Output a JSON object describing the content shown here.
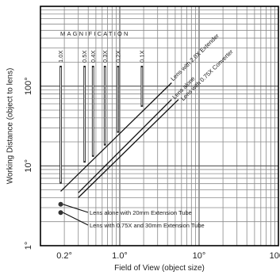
{
  "chart_data": {
    "type": "line",
    "title": "",
    "xlabel": "Field of View (object size)",
    "ylabel": "Working Distance (object to lens)",
    "x_scale": "log",
    "y_scale": "log",
    "xlim": [
      0.1,
      100
    ],
    "ylim": [
      1,
      1000
    ],
    "grid": true,
    "x_ticks": [
      {
        "value": 0.2,
        "label": "0.2°"
      },
      {
        "value": 1,
        "label": "1.0°"
      },
      {
        "value": 10,
        "label": "10°"
      },
      {
        "value": 100,
        "label": "100°"
      }
    ],
    "y_ticks": [
      {
        "value": 1,
        "label": "1°"
      },
      {
        "value": 10,
        "label": "10°"
      },
      {
        "value": 100,
        "label": "100°"
      }
    ],
    "magnification": {
      "label": "MAGNIFICATION",
      "marks": [
        {
          "label": "1.0X",
          "x": 0.18,
          "y_top": 180,
          "y_bottom": 6
        },
        {
          "label": "0.5X",
          "x": 0.36,
          "y_top": 180,
          "y_bottom": 11
        },
        {
          "label": "0.4X",
          "x": 0.46,
          "y_top": 180,
          "y_bottom": 13
        },
        {
          "label": "0.3X",
          "x": 0.65,
          "y_top": 180,
          "y_bottom": 18
        },
        {
          "label": "0.2X",
          "x": 0.95,
          "y_top": 180,
          "y_bottom": 26
        },
        {
          "label": "0.1X",
          "x": 1.9,
          "y_top": 180,
          "y_bottom": 55
        }
      ]
    },
    "series": [
      {
        "name": "Lens with 2.0X Extender",
        "x": [
          0.18,
          4.5
        ],
        "y": [
          4.8,
          110
        ]
      },
      {
        "name": "Lens alone",
        "x": [
          0.3,
          4.5
        ],
        "y": [
          4.6,
          68
        ]
      },
      {
        "name": "Lens with 0.75X Converter",
        "x": [
          0.3,
          5.5
        ],
        "y": [
          4.0,
          68
        ]
      }
    ],
    "points": [
      {
        "name": "Lens alone with 20mm Extension Tube",
        "x": 0.18,
        "y": 3.3
      },
      {
        "name": "Lens with 0.75X and 30mm Extension Tube",
        "x": 0.18,
        "y": 2.6
      }
    ]
  }
}
